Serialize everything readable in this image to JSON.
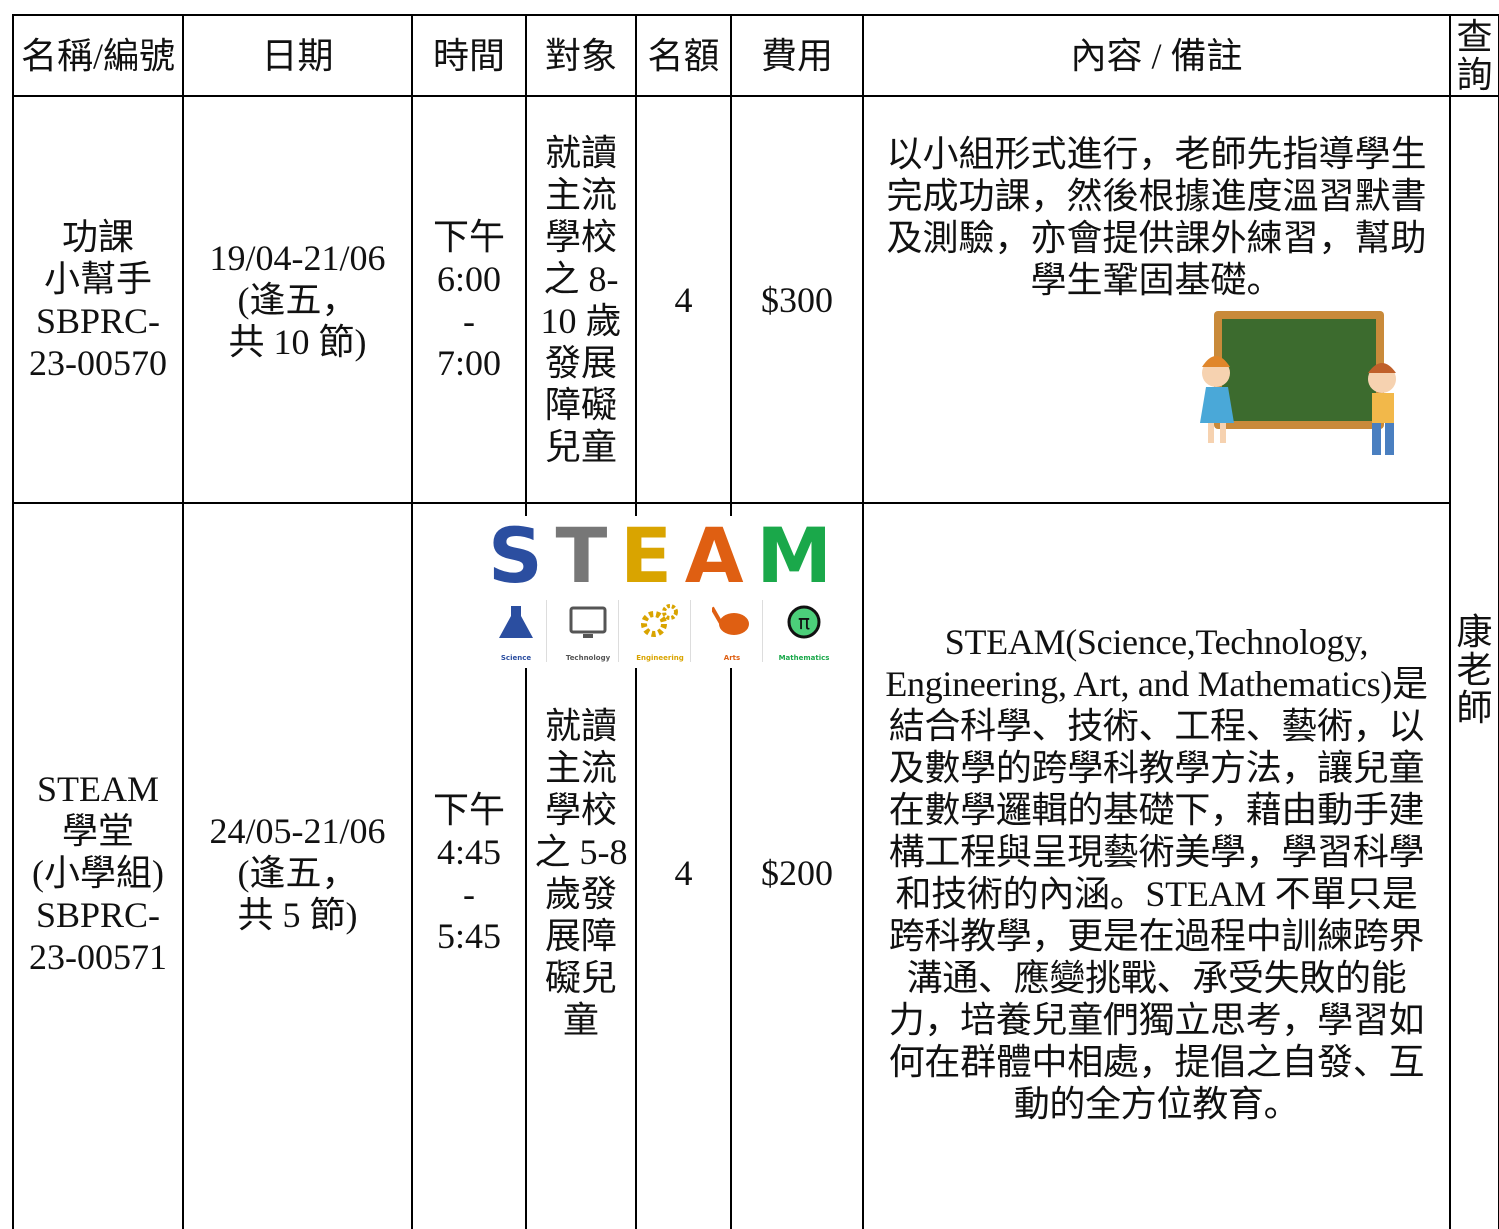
{
  "table": {
    "headers": [
      "名稱/編號",
      "日期",
      "時間",
      "對象",
      "名額",
      "費用",
      "內容 / 備註",
      "查詢"
    ],
    "contact": "康老師",
    "rows": [
      {
        "name": [
          "功課",
          "小幫手",
          "SBPRC-",
          "23-00570"
        ],
        "date": [
          "19/04-21/06",
          "(逢五，",
          "共 10 節)"
        ],
        "time": [
          "下午",
          "6:00",
          "-",
          "7:00"
        ],
        "target": [
          "就讀",
          "主流",
          "學校",
          "之 8-",
          "10 歲",
          "發展",
          "障礙",
          "兒童"
        ],
        "quota": "4",
        "fee": "$300",
        "content": [
          "以小組形式進行，老師先指導學生",
          "完成功課，然後根據進度溫習默書",
          "及測驗，亦會提供課外練習，幫助",
          "學生鞏固基礎。"
        ]
      },
      {
        "name": [
          "STEAM",
          "學堂",
          "(小學組)",
          "SBPRC-",
          "23-00571"
        ],
        "date": [
          "24/05-21/06",
          "(逢五，",
          "共 5 節)"
        ],
        "time": [
          "下午",
          "4:45",
          "-",
          "5:45"
        ],
        "target": [
          "就讀",
          "主流",
          "學校",
          "之 5-8",
          "歲發",
          "展障",
          "礙兒",
          "童"
        ],
        "quota": "4",
        "fee": "$200",
        "content": [
          "STEAM(Science,Technology,",
          "Engineering, Art, and Mathematics)是",
          "結合科學、技術、工程、藝術，以",
          "及數學的跨學科教學方法，讓兒童",
          "在數學邏輯的基礎下，藉由動手建",
          "構工程與呈現藝術美學，學習科學",
          "和技術的內涵。STEAM 不單只是",
          "跨科教學，更是在過程中訓練跨界",
          "溝通、應變挑戰、承受失敗的能",
          "力，培養兒童們獨立思考，學習如",
          "何在群體中相處，提倡之自發、互",
          "動的全方位教育。"
        ]
      }
    ]
  },
  "steam_logo": {
    "letters": [
      "S",
      "T",
      "E",
      "A",
      "M"
    ],
    "icons": [
      "Science",
      "Technology",
      "Engineering",
      "Arts",
      "Mathematics"
    ]
  }
}
